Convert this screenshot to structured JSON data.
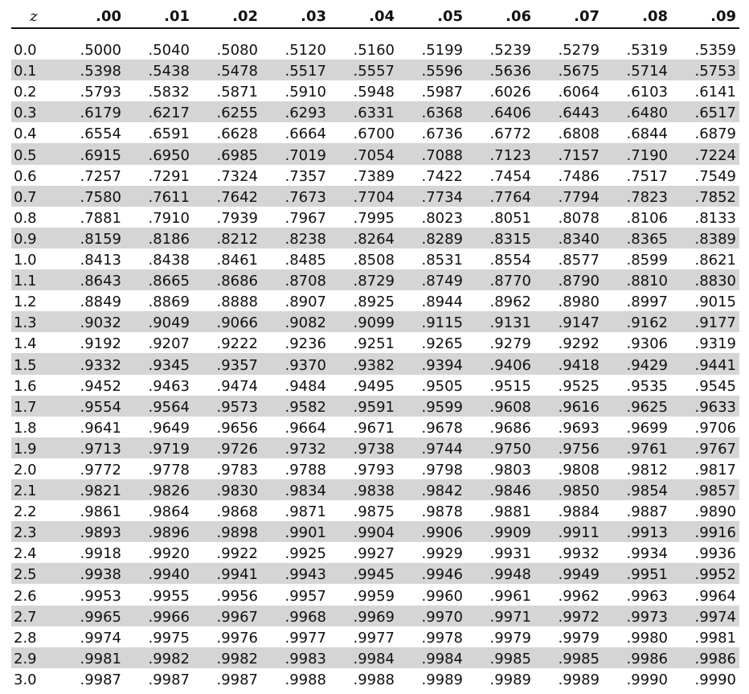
{
  "header": {
    "z_label": "z",
    "columns": [
      ".00",
      ".01",
      ".02",
      ".03",
      ".04",
      ".05",
      ".06",
      ".07",
      ".08",
      ".09"
    ]
  },
  "rows": [
    {
      "z": "0.0",
      "values": [
        ".5000",
        ".5040",
        ".5080",
        ".5120",
        ".5160",
        ".5199",
        ".5239",
        ".5279",
        ".5319",
        ".5359"
      ]
    },
    {
      "z": "0.1",
      "values": [
        ".5398",
        ".5438",
        ".5478",
        ".5517",
        ".5557",
        ".5596",
        ".5636",
        ".5675",
        ".5714",
        ".5753"
      ]
    },
    {
      "z": "0.2",
      "values": [
        ".5793",
        ".5832",
        ".5871",
        ".5910",
        ".5948",
        ".5987",
        ".6026",
        ".6064",
        ".6103",
        ".6141"
      ]
    },
    {
      "z": "0.3",
      "values": [
        ".6179",
        ".6217",
        ".6255",
        ".6293",
        ".6331",
        ".6368",
        ".6406",
        ".6443",
        ".6480",
        ".6517"
      ]
    },
    {
      "z": "0.4",
      "values": [
        ".6554",
        ".6591",
        ".6628",
        ".6664",
        ".6700",
        ".6736",
        ".6772",
        ".6808",
        ".6844",
        ".6879"
      ]
    },
    {
      "z": "0.5",
      "values": [
        ".6915",
        ".6950",
        ".6985",
        ".7019",
        ".7054",
        ".7088",
        ".7123",
        ".7157",
        ".7190",
        ".7224"
      ]
    },
    {
      "z": "0.6",
      "values": [
        ".7257",
        ".7291",
        ".7324",
        ".7357",
        ".7389",
        ".7422",
        ".7454",
        ".7486",
        ".7517",
        ".7549"
      ]
    },
    {
      "z": "0.7",
      "values": [
        ".7580",
        ".7611",
        ".7642",
        ".7673",
        ".7704",
        ".7734",
        ".7764",
        ".7794",
        ".7823",
        ".7852"
      ]
    },
    {
      "z": "0.8",
      "values": [
        ".7881",
        ".7910",
        ".7939",
        ".7967",
        ".7995",
        ".8023",
        ".8051",
        ".8078",
        ".8106",
        ".8133"
      ]
    },
    {
      "z": "0.9",
      "values": [
        ".8159",
        ".8186",
        ".8212",
        ".8238",
        ".8264",
        ".8289",
        ".8315",
        ".8340",
        ".8365",
        ".8389"
      ]
    },
    {
      "z": "1.0",
      "values": [
        ".8413",
        ".8438",
        ".8461",
        ".8485",
        ".8508",
        ".8531",
        ".8554",
        ".8577",
        ".8599",
        ".8621"
      ]
    },
    {
      "z": "1.1",
      "values": [
        ".8643",
        ".8665",
        ".8686",
        ".8708",
        ".8729",
        ".8749",
        ".8770",
        ".8790",
        ".8810",
        ".8830"
      ]
    },
    {
      "z": "1.2",
      "values": [
        ".8849",
        ".8869",
        ".8888",
        ".8907",
        ".8925",
        ".8944",
        ".8962",
        ".8980",
        ".8997",
        ".9015"
      ]
    },
    {
      "z": "1.3",
      "values": [
        ".9032",
        ".9049",
        ".9066",
        ".9082",
        ".9099",
        ".9115",
        ".9131",
        ".9147",
        ".9162",
        ".9177"
      ]
    },
    {
      "z": "1.4",
      "values": [
        ".9192",
        ".9207",
        ".9222",
        ".9236",
        ".9251",
        ".9265",
        ".9279",
        ".9292",
        ".9306",
        ".9319"
      ]
    },
    {
      "z": "1.5",
      "values": [
        ".9332",
        ".9345",
        ".9357",
        ".9370",
        ".9382",
        ".9394",
        ".9406",
        ".9418",
        ".9429",
        ".9441"
      ]
    },
    {
      "z": "1.6",
      "values": [
        ".9452",
        ".9463",
        ".9474",
        ".9484",
        ".9495",
        ".9505",
        ".9515",
        ".9525",
        ".9535",
        ".9545"
      ]
    },
    {
      "z": "1.7",
      "values": [
        ".9554",
        ".9564",
        ".9573",
        ".9582",
        ".9591",
        ".9599",
        ".9608",
        ".9616",
        ".9625",
        ".9633"
      ]
    },
    {
      "z": "1.8",
      "values": [
        ".9641",
        ".9649",
        ".9656",
        ".9664",
        ".9671",
        ".9678",
        ".9686",
        ".9693",
        ".9699",
        ".9706"
      ]
    },
    {
      "z": "1.9",
      "values": [
        ".9713",
        ".9719",
        ".9726",
        ".9732",
        ".9738",
        ".9744",
        ".9750",
        ".9756",
        ".9761",
        ".9767"
      ]
    },
    {
      "z": "2.0",
      "values": [
        ".9772",
        ".9778",
        ".9783",
        ".9788",
        ".9793",
        ".9798",
        ".9803",
        ".9808",
        ".9812",
        ".9817"
      ]
    },
    {
      "z": "2.1",
      "values": [
        ".9821",
        ".9826",
        ".9830",
        ".9834",
        ".9838",
        ".9842",
        ".9846",
        ".9850",
        ".9854",
        ".9857"
      ]
    },
    {
      "z": "2.2",
      "values": [
        ".9861",
        ".9864",
        ".9868",
        ".9871",
        ".9875",
        ".9878",
        ".9881",
        ".9884",
        ".9887",
        ".9890"
      ]
    },
    {
      "z": "2.3",
      "values": [
        ".9893",
        ".9896",
        ".9898",
        ".9901",
        ".9904",
        ".9906",
        ".9909",
        ".9911",
        ".9913",
        ".9916"
      ]
    },
    {
      "z": "2.4",
      "values": [
        ".9918",
        ".9920",
        ".9922",
        ".9925",
        ".9927",
        ".9929",
        ".9931",
        ".9932",
        ".9934",
        ".9936"
      ]
    },
    {
      "z": "2.5",
      "values": [
        ".9938",
        ".9940",
        ".9941",
        ".9943",
        ".9945",
        ".9946",
        ".9948",
        ".9949",
        ".9951",
        ".9952"
      ]
    },
    {
      "z": "2.6",
      "values": [
        ".9953",
        ".9955",
        ".9956",
        ".9957",
        ".9959",
        ".9960",
        ".9961",
        ".9962",
        ".9963",
        ".9964"
      ]
    },
    {
      "z": "2.7",
      "values": [
        ".9965",
        ".9966",
        ".9967",
        ".9968",
        ".9969",
        ".9970",
        ".9971",
        ".9972",
        ".9973",
        ".9974"
      ]
    },
    {
      "z": "2.8",
      "values": [
        ".9974",
        ".9975",
        ".9976",
        ".9977",
        ".9977",
        ".9978",
        ".9979",
        ".9979",
        ".9980",
        ".9981"
      ]
    },
    {
      "z": "2.9",
      "values": [
        ".9981",
        ".9982",
        ".9982",
        ".9983",
        ".9984",
        ".9984",
        ".9985",
        ".9985",
        ".9986",
        ".9986"
      ]
    },
    {
      "z": "3.0",
      "values": [
        ".9987",
        ".9987",
        ".9987",
        ".9988",
        ".9988",
        ".9989",
        ".9989",
        ".9989",
        ".9990",
        ".9990"
      ]
    }
  ],
  "colors": {
    "shade": "#d5d5d5",
    "text": "#111111",
    "rule": "#111111"
  }
}
